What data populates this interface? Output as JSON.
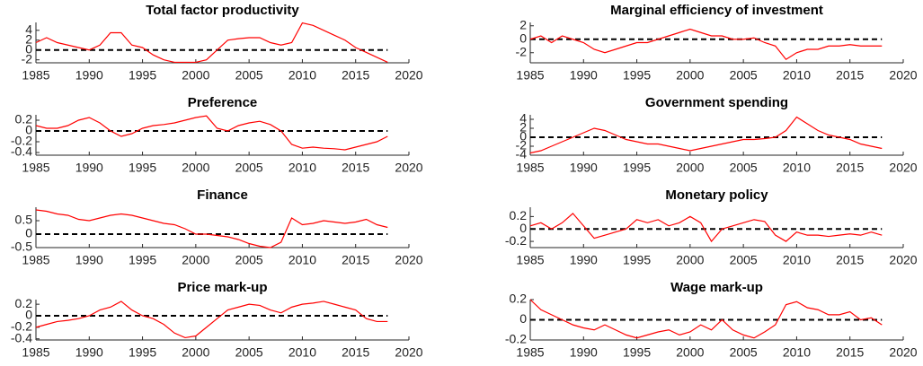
{
  "chart_data": [
    {
      "type": "line",
      "title": "Total factor productivity",
      "color": "#ff0000",
      "hline": 0,
      "x": [
        1985,
        1986,
        1987,
        1988,
        1989,
        1990,
        1991,
        1992,
        1993,
        1994,
        1995,
        1996,
        1997,
        1998,
        1999,
        2000,
        2001,
        2002,
        2003,
        2004,
        2005,
        2006,
        2007,
        2008,
        2009,
        2010,
        2011,
        2012,
        2013,
        2014,
        2015,
        2016,
        2017,
        2018
      ],
      "values": [
        1.5,
        2.5,
        1.5,
        1,
        0.5,
        0,
        1,
        3.5,
        3.5,
        1,
        0.5,
        -1,
        -2,
        -2.5,
        -2.5,
        -2.5,
        -2,
        0,
        2,
        2.3,
        2.5,
        2.5,
        1.5,
        1,
        1.5,
        5.5,
        5,
        4,
        3,
        2,
        0.5,
        -0.5,
        -1.5,
        -2.5
      ],
      "xlim": [
        1985,
        2020
      ],
      "xticks": [
        1985,
        1990,
        1995,
        2000,
        2005,
        2010,
        2015,
        2020
      ],
      "ylim": [
        -2.6,
        5.6
      ],
      "yticks": [
        -2,
        0,
        2,
        4
      ]
    },
    {
      "type": "line",
      "title": "Preference",
      "color": "#ff0000",
      "hline": 0,
      "x": [
        1985,
        1986,
        1987,
        1988,
        1989,
        1990,
        1991,
        1992,
        1993,
        1994,
        1995,
        1996,
        1997,
        1998,
        1999,
        2000,
        2001,
        2002,
        2003,
        2004,
        2005,
        2006,
        2007,
        2008,
        2009,
        2010,
        2011,
        2012,
        2013,
        2014,
        2015,
        2016,
        2017,
        2018
      ],
      "values": [
        0.1,
        0.05,
        0.05,
        0.1,
        0.2,
        0.25,
        0.15,
        0,
        -0.1,
        -0.05,
        0.05,
        0.1,
        0.12,
        0.15,
        0.2,
        0.25,
        0.28,
        0.05,
        0,
        0.1,
        0.15,
        0.18,
        0.12,
        0,
        -0.25,
        -0.32,
        -0.3,
        -0.32,
        -0.33,
        -0.35,
        -0.3,
        -0.25,
        -0.2,
        -0.1
      ],
      "xlim": [
        1985,
        2020
      ],
      "xticks": [
        1985,
        1990,
        1995,
        2000,
        2005,
        2010,
        2015,
        2020
      ],
      "ylim": [
        -0.45,
        0.3
      ],
      "yticks": [
        -0.4,
        -0.2,
        0,
        0.2
      ]
    },
    {
      "type": "line",
      "title": "Finance",
      "color": "#ff0000",
      "hline": 0,
      "x": [
        1985,
        1986,
        1987,
        1988,
        1989,
        1990,
        1991,
        1992,
        1993,
        1994,
        1995,
        1996,
        1997,
        1998,
        1999,
        2000,
        2001,
        2002,
        2003,
        2004,
        2005,
        2006,
        2007,
        2008,
        2009,
        2010,
        2011,
        2012,
        2013,
        2014,
        2015,
        2016,
        2017,
        2018
      ],
      "values": [
        0.9,
        0.85,
        0.75,
        0.7,
        0.55,
        0.5,
        0.6,
        0.7,
        0.75,
        0.7,
        0.6,
        0.5,
        0.4,
        0.35,
        0.2,
        0,
        0,
        -0.05,
        -0.1,
        -0.2,
        -0.35,
        -0.45,
        -0.5,
        -0.3,
        0.6,
        0.35,
        0.4,
        0.5,
        0.45,
        0.4,
        0.45,
        0.55,
        0.35,
        0.25
      ],
      "xlim": [
        1985,
        2020
      ],
      "xticks": [
        1985,
        1990,
        1995,
        2000,
        2005,
        2010,
        2015,
        2020
      ],
      "ylim": [
        -0.5,
        1.0
      ],
      "yticks": [
        -0.5,
        0,
        0.5
      ]
    },
    {
      "type": "line",
      "title": "Price mark-up",
      "color": "#ff0000",
      "hline": 0,
      "x": [
        1985,
        1986,
        1987,
        1988,
        1989,
        1990,
        1991,
        1992,
        1993,
        1994,
        1995,
        1996,
        1997,
        1998,
        1999,
        2000,
        2001,
        2002,
        2003,
        2004,
        2005,
        2006,
        2007,
        2008,
        2009,
        2010,
        2011,
        2012,
        2013,
        2014,
        2015,
        2016,
        2017,
        2018
      ],
      "values": [
        -0.2,
        -0.15,
        -0.1,
        -0.08,
        -0.05,
        0,
        0.1,
        0.15,
        0.25,
        0.1,
        0,
        -0.05,
        -0.15,
        -0.3,
        -0.38,
        -0.35,
        -0.2,
        -0.05,
        0.1,
        0.15,
        0.2,
        0.18,
        0.1,
        0.05,
        0.15,
        0.2,
        0.22,
        0.25,
        0.2,
        0.15,
        0.1,
        -0.05,
        -0.1,
        -0.1
      ],
      "xlim": [
        1985,
        2020
      ],
      "xticks": [
        1985,
        1990,
        1995,
        2000,
        2005,
        2010,
        2015,
        2020
      ],
      "ylim": [
        -0.42,
        0.28
      ],
      "yticks": [
        -0.4,
        -0.2,
        0,
        0.2
      ]
    },
    {
      "type": "line",
      "title": "Marginal efficiency of investment",
      "color": "#ff0000",
      "hline": 0,
      "x": [
        1985,
        1986,
        1987,
        1988,
        1989,
        1990,
        1991,
        1992,
        1993,
        1994,
        1995,
        1996,
        1997,
        1998,
        1999,
        2000,
        2001,
        2002,
        2003,
        2004,
        2005,
        2006,
        2007,
        2008,
        2009,
        2010,
        2011,
        2012,
        2013,
        2014,
        2015,
        2016,
        2017,
        2018
      ],
      "values": [
        0,
        0.5,
        -0.5,
        0.5,
        0,
        -0.5,
        -1.5,
        -2,
        -1.5,
        -1,
        -0.5,
        -0.5,
        0,
        0.5,
        1,
        1.5,
        1,
        0.5,
        0.5,
        0,
        0,
        0.2,
        -0.5,
        -1,
        -3,
        -2,
        -1.5,
        -1.5,
        -1,
        -1,
        -0.8,
        -1,
        -1,
        -1
      ],
      "xlim": [
        1985,
        2020
      ],
      "xticks": [
        1985,
        1990,
        1995,
        2000,
        2005,
        2010,
        2015,
        2020
      ],
      "ylim": [
        -3.5,
        2.5
      ],
      "yticks": [
        -2,
        0,
        2
      ]
    },
    {
      "type": "line",
      "title": "Government spending",
      "color": "#ff0000",
      "hline": 0,
      "x": [
        1985,
        1986,
        1987,
        1988,
        1989,
        1990,
        1991,
        1992,
        1993,
        1994,
        1995,
        1996,
        1997,
        1998,
        1999,
        2000,
        2001,
        2002,
        2003,
        2004,
        2005,
        2006,
        2007,
        2008,
        2009,
        2010,
        2011,
        2012,
        2013,
        2014,
        2015,
        2016,
        2017,
        2018
      ],
      "values": [
        -3.5,
        -3,
        -2,
        -1,
        0,
        1,
        2,
        1.5,
        0.5,
        -0.5,
        -1,
        -1.5,
        -1.5,
        -2,
        -2.5,
        -3,
        -2.5,
        -2,
        -1.5,
        -1,
        -0.5,
        -0.5,
        -0.3,
        0,
        1.5,
        4.5,
        3,
        1.5,
        0.5,
        0,
        -0.5,
        -1.5,
        -2,
        -2.5
      ],
      "xlim": [
        1985,
        2020
      ],
      "xticks": [
        1985,
        1990,
        1995,
        2000,
        2005,
        2010,
        2015,
        2020
      ],
      "ylim": [
        -4,
        5
      ],
      "yticks": [
        -4,
        -2,
        0,
        2,
        4
      ]
    },
    {
      "type": "line",
      "title": "Monetary policy",
      "color": "#ff0000",
      "hline": 0,
      "x": [
        1985,
        1986,
        1987,
        1988,
        1989,
        1990,
        1991,
        1992,
        1993,
        1994,
        1995,
        1996,
        1997,
        1998,
        1999,
        2000,
        2001,
        2002,
        2003,
        2004,
        2005,
        2006,
        2007,
        2008,
        2009,
        2010,
        2011,
        2012,
        2013,
        2014,
        2015,
        2016,
        2017,
        2018
      ],
      "values": [
        0.05,
        0.1,
        0,
        0.1,
        0.25,
        0.05,
        -0.15,
        -0.1,
        -0.05,
        0,
        0.15,
        0.1,
        0.15,
        0.05,
        0.1,
        0.2,
        0.1,
        -0.2,
        0,
        0.05,
        0.1,
        0.15,
        0.12,
        -0.1,
        -0.2,
        -0.05,
        -0.1,
        -0.1,
        -0.12,
        -0.1,
        -0.08,
        -0.1,
        -0.05,
        -0.1
      ],
      "xlim": [
        1985,
        2020
      ],
      "xticks": [
        1985,
        1990,
        1995,
        2000,
        2005,
        2010,
        2015,
        2020
      ],
      "ylim": [
        -0.3,
        0.35
      ],
      "yticks": [
        -0.2,
        0,
        0.2
      ]
    },
    {
      "type": "line",
      "title": "Wage mark-up",
      "color": "#ff0000",
      "hline": 0,
      "x": [
        1985,
        1986,
        1987,
        1988,
        1989,
        1990,
        1991,
        1992,
        1993,
        1994,
        1995,
        1996,
        1997,
        1998,
        1999,
        2000,
        2001,
        2002,
        2003,
        2004,
        2005,
        2006,
        2007,
        2008,
        2009,
        2010,
        2011,
        2012,
        2013,
        2014,
        2015,
        2016,
        2017,
        2018
      ],
      "values": [
        0.2,
        0.1,
        0.05,
        0,
        -0.05,
        -0.08,
        -0.1,
        -0.05,
        -0.1,
        -0.15,
        -0.18,
        -0.15,
        -0.12,
        -0.1,
        -0.15,
        -0.12,
        -0.05,
        -0.1,
        0,
        -0.1,
        -0.15,
        -0.18,
        -0.12,
        -0.05,
        0.15,
        0.18,
        0.12,
        0.1,
        0.05,
        0.05,
        0.08,
        0,
        0.02,
        -0.05
      ],
      "xlim": [
        1985,
        2020
      ],
      "xticks": [
        1985,
        1990,
        1995,
        2000,
        2005,
        2010,
        2015,
        2020
      ],
      "ylim": [
        -0.2,
        0.2
      ],
      "yticks": [
        -0.2,
        0,
        0.2
      ]
    }
  ]
}
